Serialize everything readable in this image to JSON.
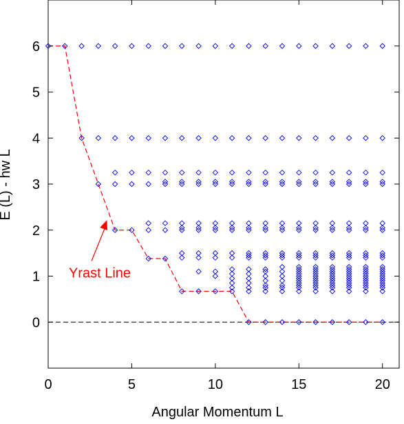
{
  "chart_data": {
    "type": "scatter",
    "xlabel": "Angular Momentum L",
    "ylabel": "E (L) - hw L",
    "xlim": [
      0,
      21
    ],
    "ylim": [
      -1,
      7
    ],
    "xticks": [
      0,
      5,
      10,
      15,
      20
    ],
    "yticks": [
      0,
      1,
      2,
      3,
      4,
      5,
      6
    ],
    "grid": false,
    "colors": {
      "points": "#0000ff",
      "yrast": "#ff0000",
      "zero_line": "#000000"
    },
    "series": [
      {
        "marker": "diamond",
        "points": [
          {
            "x": 0,
            "y": [
              6
            ]
          },
          {
            "x": 1,
            "y": [
              6
            ]
          },
          {
            "x": 2,
            "y": [
              6,
              4
            ]
          },
          {
            "x": 3,
            "y": [
              6,
              4,
              3
            ]
          },
          {
            "x": 4,
            "y": [
              6,
              4,
              3.25,
              3,
              2
            ]
          },
          {
            "x": 5,
            "y": [
              6,
              4,
              3.25,
              3,
              2
            ]
          },
          {
            "x": 6,
            "y": [
              6,
              4,
              3.25,
              3,
              2.15,
              2,
              1.38
            ]
          },
          {
            "x": 7,
            "y": [
              6,
              4,
              3.25,
              3.05,
              3,
              2.15,
              2,
              1.38
            ]
          },
          {
            "x": 8,
            "y": [
              6,
              4,
              3.25,
              3.05,
              3,
              2.15,
              2.05,
              2,
              1.5,
              1.4,
              0.67
            ]
          },
          {
            "x": 9,
            "y": [
              6,
              4,
              3.25,
              3.05,
              3,
              2.15,
              2.05,
              2,
              1.5,
              1.4,
              1.1,
              0.67
            ]
          },
          {
            "x": 10,
            "y": [
              6,
              4,
              3.25,
              3.05,
              3,
              2.15,
              2.05,
              2,
              1.5,
              1.4,
              1.1,
              1.0,
              0.67
            ]
          },
          {
            "x": 11,
            "y": [
              6,
              4,
              3.25,
              3.05,
              3,
              2.15,
              2.05,
              2,
              1.5,
              1.4,
              1.15,
              1.05,
              0.95,
              0.85,
              0.75,
              0.67
            ]
          },
          {
            "x": 12,
            "y": [
              6,
              4,
              3.25,
              3.05,
              3,
              2.15,
              2.05,
              2,
              1.5,
              1.45,
              1.4,
              1.15,
              1.05,
              0.95,
              0.85,
              0.75,
              0.67,
              0
            ]
          },
          {
            "x": 13,
            "y": [
              6,
              4,
              3.25,
              3.05,
              3,
              2.15,
              2.05,
              2,
              1.5,
              1.45,
              1.4,
              1.15,
              1.1,
              1.0,
              0.9,
              0.8,
              0.75,
              0.67,
              0
            ]
          },
          {
            "x": 14,
            "y": [
              6,
              4,
              3.25,
              3.05,
              3,
              2.15,
              2.05,
              2,
              1.5,
              1.45,
              1.4,
              1.2,
              1.1,
              1.0,
              0.9,
              0.8,
              0.75,
              0.67,
              0
            ]
          },
          {
            "x": 15,
            "y": [
              6,
              4,
              3.25,
              3.05,
              3,
              2.15,
              2.05,
              2,
              1.5,
              1.45,
              1.4,
              1.2,
              1.15,
              1.1,
              1.05,
              1.0,
              0.95,
              0.9,
              0.85,
              0.8,
              0.75,
              0.67,
              0
            ]
          },
          {
            "x": 16,
            "y": [
              6,
              4,
              3.25,
              3.05,
              3,
              2.15,
              2.05,
              2,
              1.5,
              1.45,
              1.4,
              1.2,
              1.15,
              1.1,
              1.05,
              1.0,
              0.95,
              0.9,
              0.85,
              0.8,
              0.75,
              0.67,
              0
            ]
          },
          {
            "x": 17,
            "y": [
              6,
              4,
              3.25,
              3.05,
              3,
              2.15,
              2.05,
              2,
              1.5,
              1.45,
              1.4,
              1.2,
              1.15,
              1.1,
              1.05,
              1.0,
              0.95,
              0.9,
              0.85,
              0.8,
              0.75,
              0.67,
              0
            ]
          },
          {
            "x": 18,
            "y": [
              6,
              4,
              3.25,
              3.05,
              3,
              2.15,
              2.05,
              2,
              1.5,
              1.45,
              1.4,
              1.2,
              1.15,
              1.1,
              1.05,
              1.0,
              0.95,
              0.9,
              0.85,
              0.8,
              0.75,
              0.67,
              0
            ]
          },
          {
            "x": 19,
            "y": [
              6,
              4,
              3.25,
              3.05,
              3,
              2.15,
              2.05,
              2,
              1.5,
              1.45,
              1.4,
              1.2,
              1.15,
              1.1,
              1.05,
              1.0,
              0.95,
              0.9,
              0.85,
              0.8,
              0.75,
              0.67,
              0
            ]
          },
          {
            "x": 20,
            "y": [
              6,
              4,
              3.25,
              3.05,
              3,
              2.15,
              2.05,
              2,
              1.5,
              1.45,
              1.4,
              1.2,
              1.15,
              1.1,
              1.05,
              1.0,
              0.95,
              0.9,
              0.85,
              0.8,
              0.75,
              0.67,
              0
            ]
          }
        ]
      }
    ],
    "yrast_line": {
      "x": [
        0,
        1,
        2,
        3,
        4,
        5,
        6,
        7,
        8,
        9,
        10,
        11,
        12,
        13,
        14,
        15,
        16,
        17,
        18,
        19,
        20
      ],
      "y": [
        6,
        6,
        4,
        3,
        2,
        2,
        1.38,
        1.38,
        0.67,
        0.67,
        0.67,
        0.67,
        0,
        0,
        0,
        0,
        0,
        0,
        0,
        0,
        0
      ]
    },
    "reference_line": {
      "y": 0,
      "style": "dashed"
    },
    "annotations": [
      {
        "text": "Yrast Line",
        "arrow_to": {
          "x": 3.5,
          "y": 2.2
        },
        "text_at": {
          "x": 3.5,
          "y": 1.0
        }
      }
    ]
  }
}
